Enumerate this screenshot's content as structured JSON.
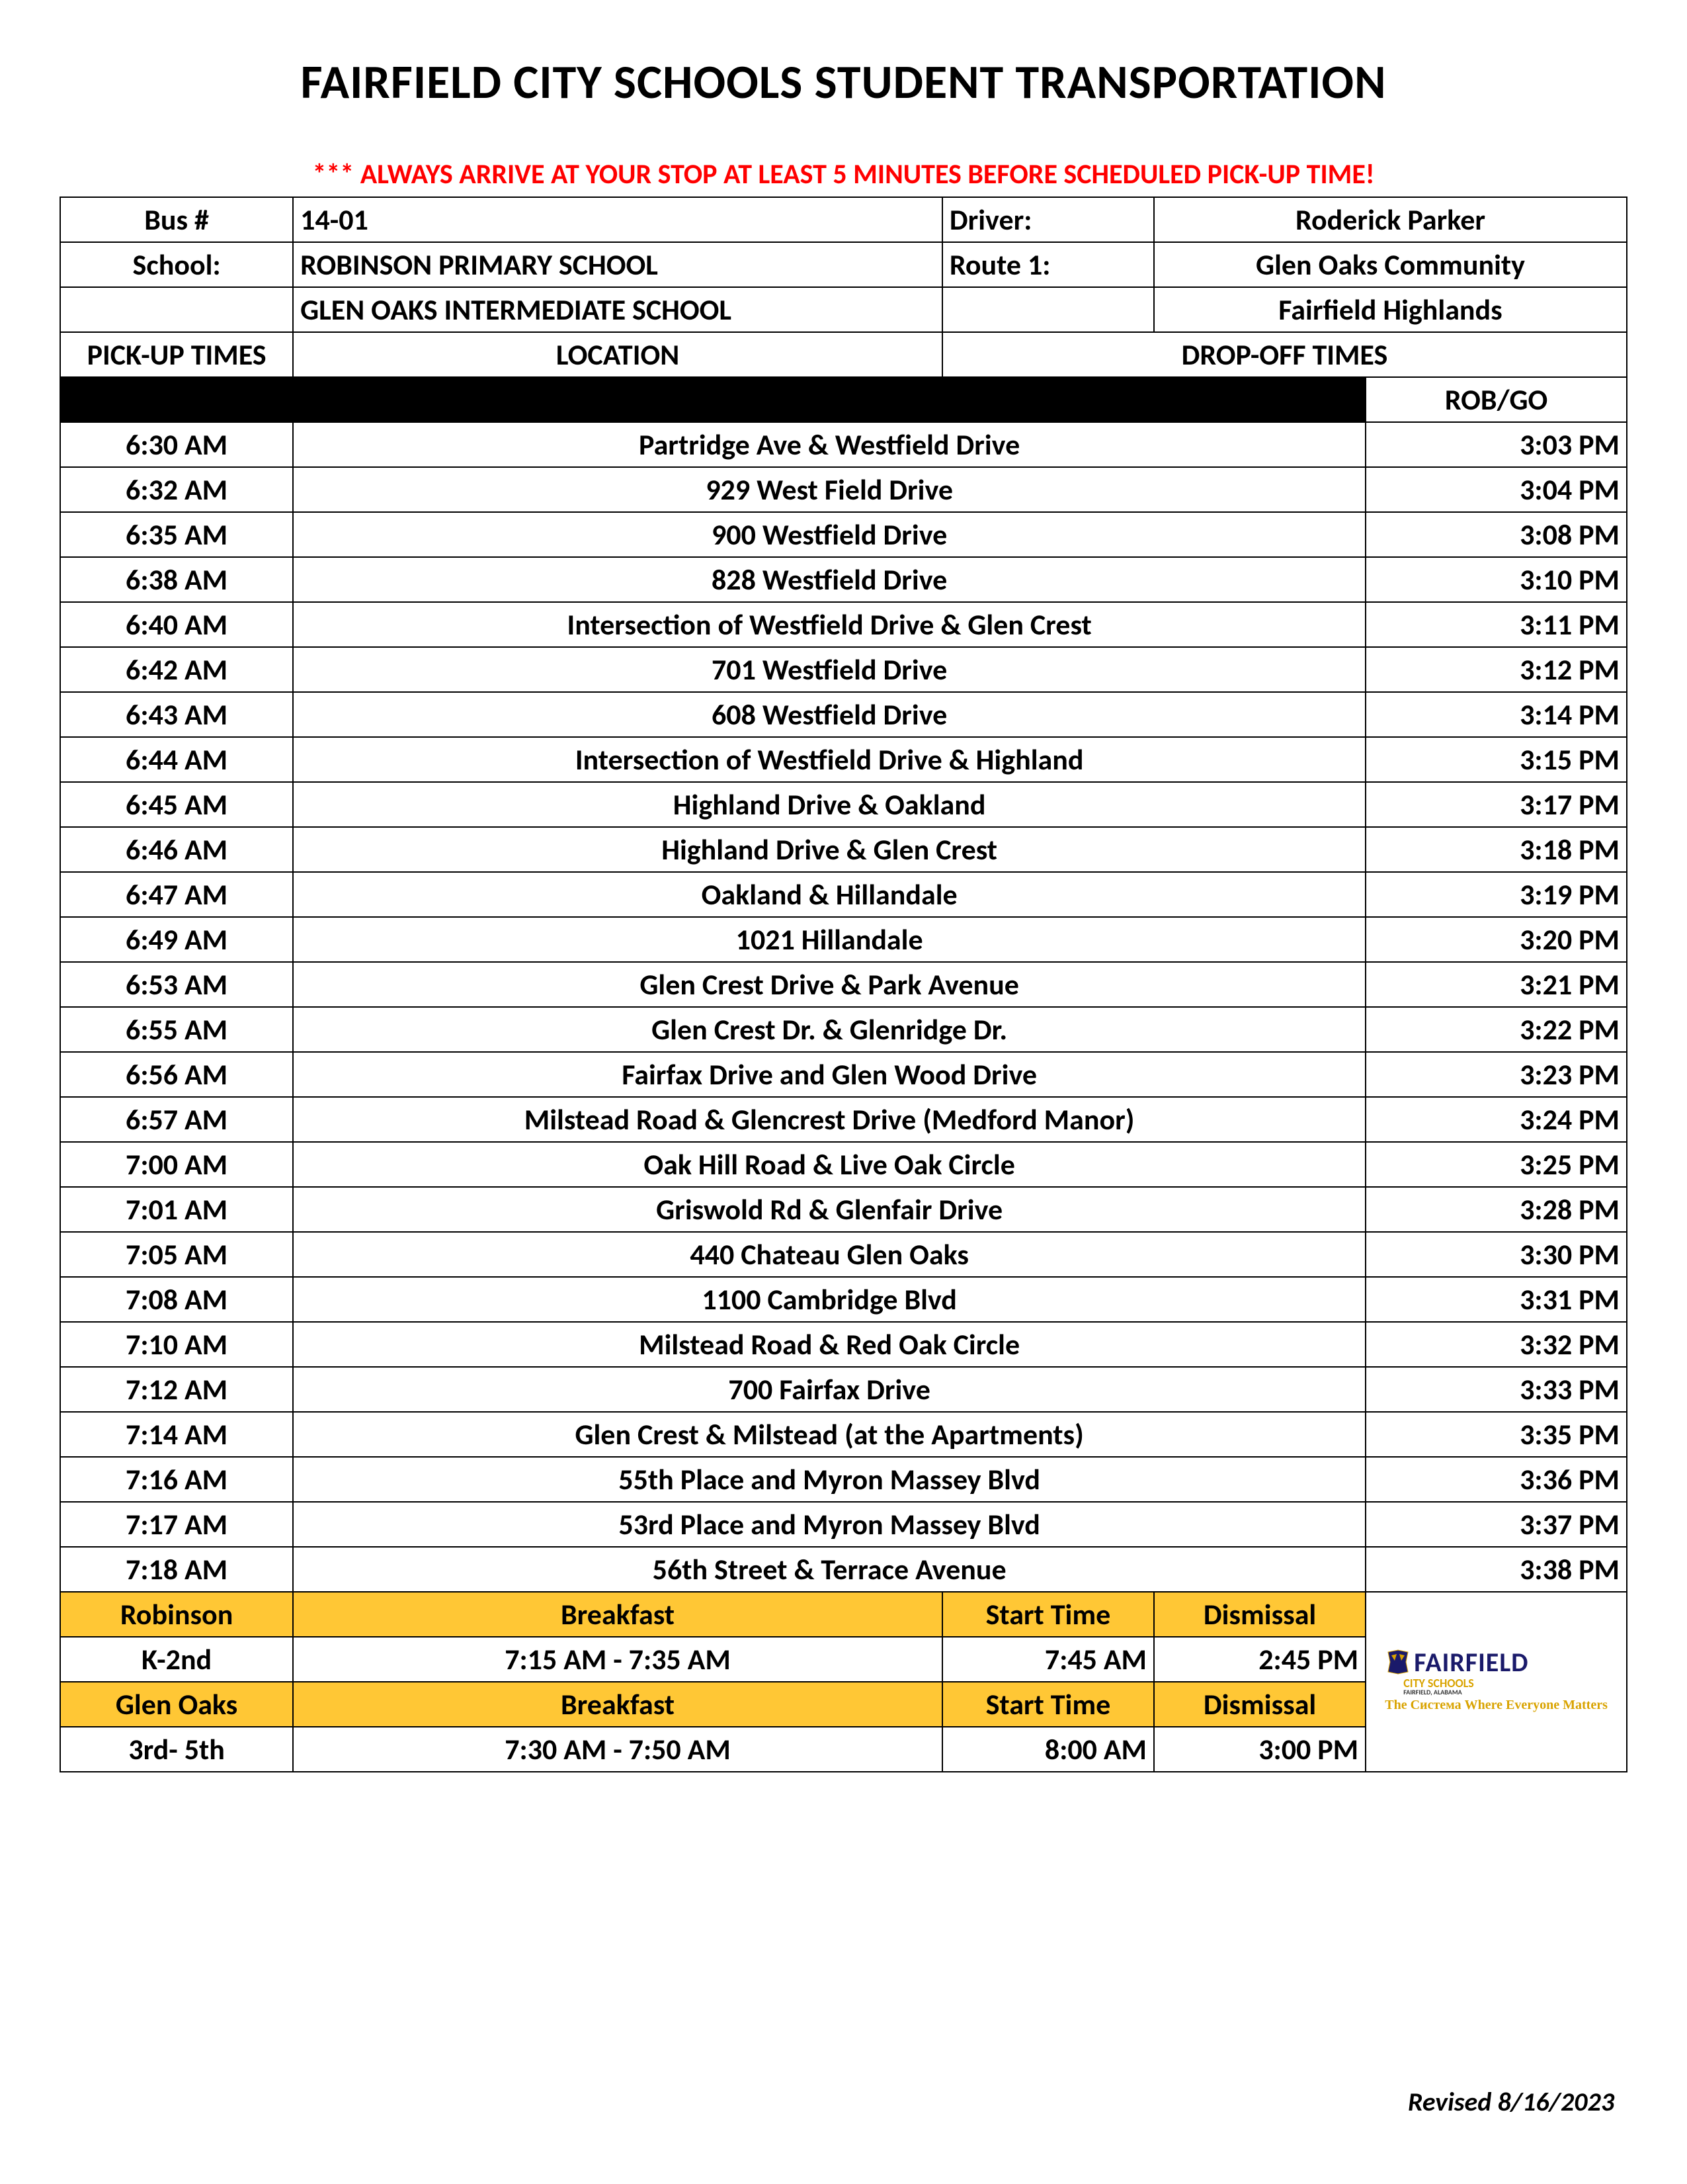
{
  "title": "FAIRFIELD CITY SCHOOLS STUDENT TRANSPORTATION",
  "warning": "*** ALWAYS ARRIVE AT YOUR STOP AT LEAST 5 MINUTES BEFORE SCHEDULED PICK-UP TIME!",
  "header": {
    "busLabel": "Bus #",
    "busValue": "14-01",
    "driverLabel": "Driver:",
    "driverValue": "Roderick Parker",
    "schoolLabel": "School:",
    "schoolValue": "ROBINSON PRIMARY SCHOOL",
    "route1Label": "Route 1:",
    "route1Value": "Glen Oaks Community",
    "school2Value": "GLEN OAKS INTERMEDIATE SCHOOL",
    "route2Value": "Fairfield Highlands",
    "pickupTimesLabel": "PICK-UP TIMES",
    "locationLabel": "LOCATION",
    "dropoffTimesLabel": "DROP-OFF TIMES",
    "robGoLabel": "ROB/GO"
  },
  "stops": [
    {
      "pickup": "6:30 AM",
      "location": "Partridge Ave & Westfield Drive",
      "dropoff": "3:03 PM"
    },
    {
      "pickup": "6:32 AM",
      "location": "929 West Field Drive",
      "dropoff": "3:04 PM"
    },
    {
      "pickup": "6:35 AM",
      "location": "900 Westfield Drive",
      "dropoff": "3:08 PM"
    },
    {
      "pickup": "6:38 AM",
      "location": "828 Westfield Drive",
      "dropoff": "3:10 PM"
    },
    {
      "pickup": "6:40 AM",
      "location": "Intersection of Westfield Drive & Glen Crest",
      "dropoff": "3:11 PM"
    },
    {
      "pickup": "6:42 AM",
      "location": "701 Westfield Drive",
      "dropoff": "3:12 PM"
    },
    {
      "pickup": "6:43 AM",
      "location": "608 Westfield Drive",
      "dropoff": "3:14 PM"
    },
    {
      "pickup": "6:44 AM",
      "location": "Intersection of Westfield Drive & Highland",
      "dropoff": "3:15 PM"
    },
    {
      "pickup": "6:45 AM",
      "location": "Highland Drive & Oakland",
      "dropoff": "3:17 PM"
    },
    {
      "pickup": "6:46 AM",
      "location": "Highland Drive & Glen Crest",
      "dropoff": "3:18 PM"
    },
    {
      "pickup": "6:47 AM",
      "location": "Oakland & Hillandale",
      "dropoff": "3:19 PM"
    },
    {
      "pickup": "6:49 AM",
      "location": "1021 Hillandale",
      "dropoff": "3:20 PM"
    },
    {
      "pickup": "6:53 AM",
      "location": "Glen Crest Drive &   Park Avenue",
      "dropoff": "3:21 PM"
    },
    {
      "pickup": "6:55 AM",
      "location": "Glen Crest Dr. & Glenridge Dr.",
      "dropoff": "3:22 PM"
    },
    {
      "pickup": "6:56 AM",
      "location": "Fairfax Drive and Glen Wood Drive",
      "dropoff": "3:23 PM"
    },
    {
      "pickup": "6:57 AM",
      "location": "Milstead Road & Glencrest Drive (Medford Manor)",
      "dropoff": "3:24 PM"
    },
    {
      "pickup": "7:00 AM",
      "location": "Oak Hill Road & Live Oak Circle",
      "dropoff": "3:25 PM"
    },
    {
      "pickup": "7:01 AM",
      "location": "Griswold Rd & Glenfair Drive",
      "dropoff": "3:28 PM"
    },
    {
      "pickup": "7:05 AM",
      "location": "440 Chateau Glen Oaks",
      "dropoff": "3:30 PM"
    },
    {
      "pickup": "7:08 AM",
      "location": "1100 Cambridge Blvd",
      "dropoff": "3:31 PM"
    },
    {
      "pickup": "7:10 AM",
      "location": "Milstead Road & Red Oak Circle",
      "dropoff": "3:32 PM"
    },
    {
      "pickup": "7:12 AM",
      "location": "700 Fairfax Drive",
      "dropoff": "3:33 PM"
    },
    {
      "pickup": "7:14 AM",
      "location": "Glen Crest & Milstead (at the Apartments)",
      "dropoff": "3:35 PM"
    },
    {
      "pickup": "7:16 AM",
      "location": "55th Place and Myron Massey Blvd",
      "dropoff": "3:36 PM"
    },
    {
      "pickup": "7:17 AM",
      "location": "53rd Place and Myron Massey Blvd",
      "dropoff": "3:37 PM"
    },
    {
      "pickup": "7:18 AM",
      "location": "56th Street & Terrace Avenue",
      "dropoff": "3:38 PM"
    }
  ],
  "footer": {
    "robinsonLabel": "Robinson",
    "breakfastLabel": "Breakfast",
    "startTimeLabel": "Start Time",
    "dismissalLabel": "Dismissal",
    "k2Label": "K-2nd",
    "robinsonBreakfast": "7:15 AM - 7:35 AM",
    "robinsonStart": "7:45 AM",
    "robinsonDismissal": "2:45 PM",
    "glenOaksLabel": "Glen Oaks",
    "g35Label": "3rd- 5th",
    "glenOaksBreakfast": "7:30 AM - 7:50 AM",
    "glenOaksStart": "8:00 AM",
    "glenOaksDismissal": "3:00 PM",
    "logo": {
      "line1": "FAIRFIELD",
      "line2": "CITY SCHOOLS",
      "line3": "FAIRFIELD, ALABAMA",
      "tag": "The Система Where Everyone Matters"
    }
  },
  "revised": "Revised 8/16/2023",
  "style": {
    "yellow": "#ffc735",
    "red": "#ff0000",
    "black": "#000000",
    "navy": "#1a1a6a",
    "gold": "#d9a300"
  }
}
